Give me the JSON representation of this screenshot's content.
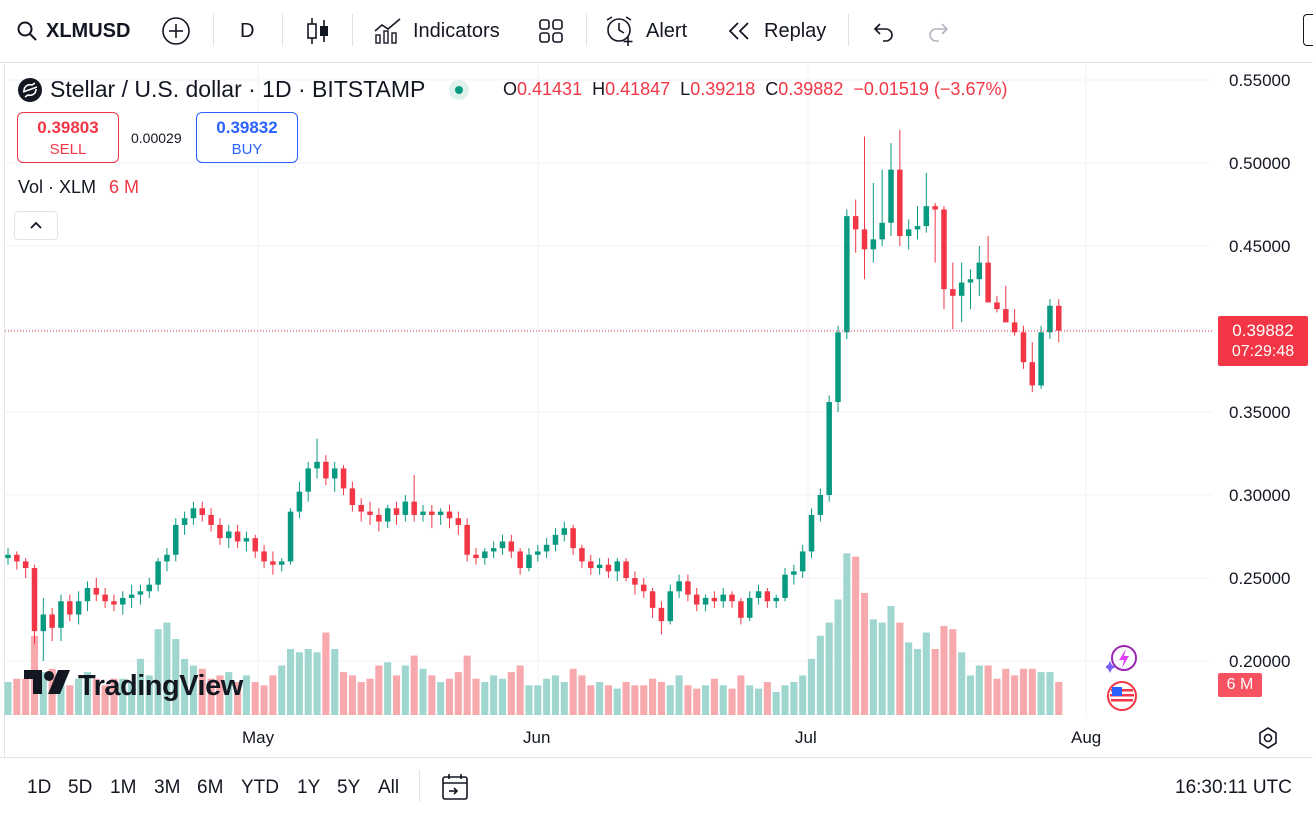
{
  "toolbar": {
    "symbol": "XLMUSD",
    "interval": "D",
    "indicators_label": "Indicators",
    "alert_label": "Alert",
    "replay_label": "Replay"
  },
  "legend": {
    "title": "Stellar / U.S. dollar · 1D · BITSTAMP",
    "open_key": "O",
    "open": "0.41431",
    "high_key": "H",
    "high": "0.41847",
    "low_key": "L",
    "low": "0.39218",
    "close_key": "C",
    "close": "0.39882",
    "change": "−0.01519 (−3.67%)"
  },
  "trade": {
    "sell_price": "0.39803",
    "sell_label": "SELL",
    "spread": "0.00029",
    "buy_price": "0.39832",
    "buy_label": "BUY"
  },
  "volume_legend": {
    "label": "Vol · XLM",
    "value": "6 M"
  },
  "price_axis": [
    "0.55000",
    "0.50000",
    "0.45000",
    "0.35000",
    "0.30000",
    "0.25000",
    "0.20000"
  ],
  "current_price": {
    "price": "0.39882",
    "countdown": "07:29:48"
  },
  "volume_badge": "6 M",
  "time_axis": [
    "May",
    "Jun",
    "Jul",
    "Aug"
  ],
  "brand": "TradingView",
  "timeframes": [
    "1D",
    "5D",
    "1M",
    "3M",
    "6M",
    "YTD",
    "1Y",
    "5Y",
    "All"
  ],
  "clock": "16:30:11 UTC",
  "colors": {
    "up": "#089981",
    "down": "#f23645",
    "up_volume": "#9fd7d0",
    "down_volume": "#f7a9ad",
    "buy": "#2962ff",
    "accent": "#f23645"
  },
  "chart_data": {
    "type": "candlestick",
    "ylim": [
      0.18,
      0.56
    ],
    "candles": [
      [
        0.262,
        0.268,
        0.258,
        0.264
      ],
      [
        0.264,
        0.266,
        0.255,
        0.26
      ],
      [
        0.26,
        0.262,
        0.25,
        0.256
      ],
      [
        0.256,
        0.258,
        0.21,
        0.218
      ],
      [
        0.218,
        0.238,
        0.2,
        0.228
      ],
      [
        0.228,
        0.232,
        0.212,
        0.22
      ],
      [
        0.22,
        0.24,
        0.212,
        0.236
      ],
      [
        0.236,
        0.24,
        0.224,
        0.228
      ],
      [
        0.228,
        0.242,
        0.222,
        0.236
      ],
      [
        0.236,
        0.248,
        0.23,
        0.244
      ],
      [
        0.244,
        0.25,
        0.236,
        0.24
      ],
      [
        0.24,
        0.244,
        0.232,
        0.236
      ],
      [
        0.236,
        0.24,
        0.23,
        0.234
      ],
      [
        0.234,
        0.242,
        0.228,
        0.238
      ],
      [
        0.238,
        0.246,
        0.232,
        0.24
      ],
      [
        0.24,
        0.246,
        0.234,
        0.242
      ],
      [
        0.242,
        0.25,
        0.238,
        0.246
      ],
      [
        0.246,
        0.262,
        0.242,
        0.26
      ],
      [
        0.26,
        0.268,
        0.254,
        0.264
      ],
      [
        0.264,
        0.286,
        0.26,
        0.282
      ],
      [
        0.282,
        0.29,
        0.276,
        0.286
      ],
      [
        0.286,
        0.296,
        0.282,
        0.292
      ],
      [
        0.292,
        0.296,
        0.284,
        0.288
      ],
      [
        0.288,
        0.292,
        0.278,
        0.282
      ],
      [
        0.282,
        0.286,
        0.27,
        0.274
      ],
      [
        0.274,
        0.282,
        0.268,
        0.278
      ],
      [
        0.278,
        0.282,
        0.268,
        0.272
      ],
      [
        0.272,
        0.278,
        0.266,
        0.274
      ],
      [
        0.274,
        0.276,
        0.262,
        0.266
      ],
      [
        0.266,
        0.27,
        0.256,
        0.26
      ],
      [
        0.26,
        0.266,
        0.252,
        0.258
      ],
      [
        0.258,
        0.262,
        0.254,
        0.26
      ],
      [
        0.26,
        0.292,
        0.258,
        0.29
      ],
      [
        0.29,
        0.308,
        0.286,
        0.302
      ],
      [
        0.302,
        0.32,
        0.296,
        0.316
      ],
      [
        0.316,
        0.334,
        0.31,
        0.32
      ],
      [
        0.32,
        0.324,
        0.306,
        0.31
      ],
      [
        0.31,
        0.32,
        0.302,
        0.316
      ],
      [
        0.316,
        0.318,
        0.3,
        0.304
      ],
      [
        0.304,
        0.308,
        0.29,
        0.294
      ],
      [
        0.294,
        0.298,
        0.284,
        0.29
      ],
      [
        0.29,
        0.296,
        0.282,
        0.288
      ],
      [
        0.288,
        0.292,
        0.278,
        0.284
      ],
      [
        0.284,
        0.294,
        0.28,
        0.292
      ],
      [
        0.292,
        0.296,
        0.282,
        0.288
      ],
      [
        0.288,
        0.3,
        0.284,
        0.296
      ],
      [
        0.296,
        0.312,
        0.284,
        0.288
      ],
      [
        0.288,
        0.294,
        0.284,
        0.29
      ],
      [
        0.29,
        0.294,
        0.28,
        0.288
      ],
      [
        0.288,
        0.292,
        0.282,
        0.29
      ],
      [
        0.29,
        0.294,
        0.28,
        0.286
      ],
      [
        0.286,
        0.29,
        0.276,
        0.282
      ],
      [
        0.282,
        0.286,
        0.26,
        0.264
      ],
      [
        0.264,
        0.268,
        0.258,
        0.262
      ],
      [
        0.262,
        0.268,
        0.258,
        0.266
      ],
      [
        0.266,
        0.272,
        0.262,
        0.268
      ],
      [
        0.268,
        0.276,
        0.264,
        0.272
      ],
      [
        0.272,
        0.276,
        0.262,
        0.266
      ],
      [
        0.266,
        0.268,
        0.252,
        0.256
      ],
      [
        0.256,
        0.268,
        0.254,
        0.264
      ],
      [
        0.264,
        0.27,
        0.26,
        0.266
      ],
      [
        0.266,
        0.274,
        0.262,
        0.27
      ],
      [
        0.27,
        0.28,
        0.266,
        0.276
      ],
      [
        0.276,
        0.284,
        0.272,
        0.28
      ],
      [
        0.28,
        0.282,
        0.264,
        0.268
      ],
      [
        0.268,
        0.27,
        0.256,
        0.26
      ],
      [
        0.26,
        0.264,
        0.252,
        0.256
      ],
      [
        0.256,
        0.262,
        0.252,
        0.258
      ],
      [
        0.258,
        0.262,
        0.25,
        0.254
      ],
      [
        0.254,
        0.262,
        0.248,
        0.26
      ],
      [
        0.26,
        0.262,
        0.248,
        0.25
      ],
      [
        0.25,
        0.254,
        0.24,
        0.246
      ],
      [
        0.246,
        0.25,
        0.238,
        0.242
      ],
      [
        0.242,
        0.244,
        0.226,
        0.232
      ],
      [
        0.232,
        0.236,
        0.216,
        0.224
      ],
      [
        0.224,
        0.246,
        0.222,
        0.242
      ],
      [
        0.242,
        0.252,
        0.238,
        0.248
      ],
      [
        0.248,
        0.252,
        0.236,
        0.24
      ],
      [
        0.24,
        0.244,
        0.23,
        0.234
      ],
      [
        0.234,
        0.24,
        0.23,
        0.238
      ],
      [
        0.238,
        0.242,
        0.232,
        0.236
      ],
      [
        0.236,
        0.244,
        0.232,
        0.24
      ],
      [
        0.24,
        0.242,
        0.232,
        0.236
      ],
      [
        0.236,
        0.238,
        0.222,
        0.226
      ],
      [
        0.226,
        0.242,
        0.224,
        0.238
      ],
      [
        0.238,
        0.246,
        0.234,
        0.242
      ],
      [
        0.242,
        0.244,
        0.232,
        0.236
      ],
      [
        0.236,
        0.24,
        0.232,
        0.238
      ],
      [
        0.238,
        0.256,
        0.236,
        0.252
      ],
      [
        0.252,
        0.258,
        0.246,
        0.254
      ],
      [
        0.254,
        0.27,
        0.25,
        0.266
      ],
      [
        0.266,
        0.292,
        0.262,
        0.288
      ],
      [
        0.288,
        0.304,
        0.284,
        0.3
      ],
      [
        0.3,
        0.36,
        0.296,
        0.356
      ],
      [
        0.356,
        0.402,
        0.35,
        0.398
      ],
      [
        0.398,
        0.472,
        0.394,
        0.468
      ],
      [
        0.468,
        0.478,
        0.446,
        0.46
      ],
      [
        0.46,
        0.516,
        0.43,
        0.448
      ],
      [
        0.448,
        0.488,
        0.44,
        0.454
      ],
      [
        0.454,
        0.496,
        0.45,
        0.464
      ],
      [
        0.464,
        0.512,
        0.456,
        0.496
      ],
      [
        0.496,
        0.52,
        0.45,
        0.456
      ],
      [
        0.456,
        0.466,
        0.448,
        0.46
      ],
      [
        0.46,
        0.474,
        0.454,
        0.462
      ],
      [
        0.462,
        0.494,
        0.458,
        0.474
      ],
      [
        0.474,
        0.476,
        0.44,
        0.472
      ],
      [
        0.472,
        0.474,
        0.412,
        0.424
      ],
      [
        0.424,
        0.44,
        0.4,
        0.42
      ],
      [
        0.42,
        0.44,
        0.404,
        0.428
      ],
      [
        0.428,
        0.436,
        0.412,
        0.43
      ],
      [
        0.43,
        0.45,
        0.42,
        0.44
      ],
      [
        0.44,
        0.456,
        0.416,
        0.416
      ],
      [
        0.416,
        0.42,
        0.41,
        0.412
      ],
      [
        0.412,
        0.426,
        0.404,
        0.404
      ],
      [
        0.404,
        0.412,
        0.396,
        0.398
      ],
      [
        0.398,
        0.402,
        0.376,
        0.38
      ],
      [
        0.38,
        0.392,
        0.362,
        0.366
      ],
      [
        0.366,
        0.402,
        0.364,
        0.398
      ],
      [
        0.398,
        0.418,
        0.394,
        0.414
      ],
      [
        0.414,
        0.418,
        0.392,
        0.399
      ]
    ],
    "volumes": [
      0.2,
      0.22,
      0.22,
      0.48,
      0.26,
      0.28,
      0.24,
      0.18,
      0.22,
      0.26,
      0.22,
      0.18,
      0.22,
      0.22,
      0.2,
      0.34,
      0.24,
      0.52,
      0.56,
      0.46,
      0.34,
      0.3,
      0.28,
      0.22,
      0.24,
      0.26,
      0.2,
      0.24,
      0.2,
      0.18,
      0.24,
      0.3,
      0.4,
      0.38,
      0.4,
      0.38,
      0.5,
      0.4,
      0.26,
      0.24,
      0.2,
      0.22,
      0.3,
      0.32,
      0.24,
      0.3,
      0.36,
      0.28,
      0.24,
      0.2,
      0.22,
      0.26,
      0.36,
      0.22,
      0.2,
      0.24,
      0.22,
      0.26,
      0.3,
      0.18,
      0.18,
      0.22,
      0.24,
      0.2,
      0.28,
      0.24,
      0.18,
      0.2,
      0.18,
      0.16,
      0.2,
      0.18,
      0.18,
      0.22,
      0.2,
      0.18,
      0.24,
      0.18,
      0.16,
      0.18,
      0.22,
      0.18,
      0.16,
      0.24,
      0.18,
      0.16,
      0.2,
      0.14,
      0.18,
      0.2,
      0.24,
      0.34,
      0.48,
      0.56,
      0.7,
      0.98,
      0.96,
      0.74,
      0.58,
      0.56,
      0.66,
      0.56,
      0.44,
      0.4,
      0.5,
      0.4,
      0.54,
      0.52,
      0.38,
      0.24,
      0.3,
      0.3,
      0.22,
      0.28,
      0.24,
      0.28,
      0.28,
      0.26,
      0.26,
      0.2
    ]
  }
}
